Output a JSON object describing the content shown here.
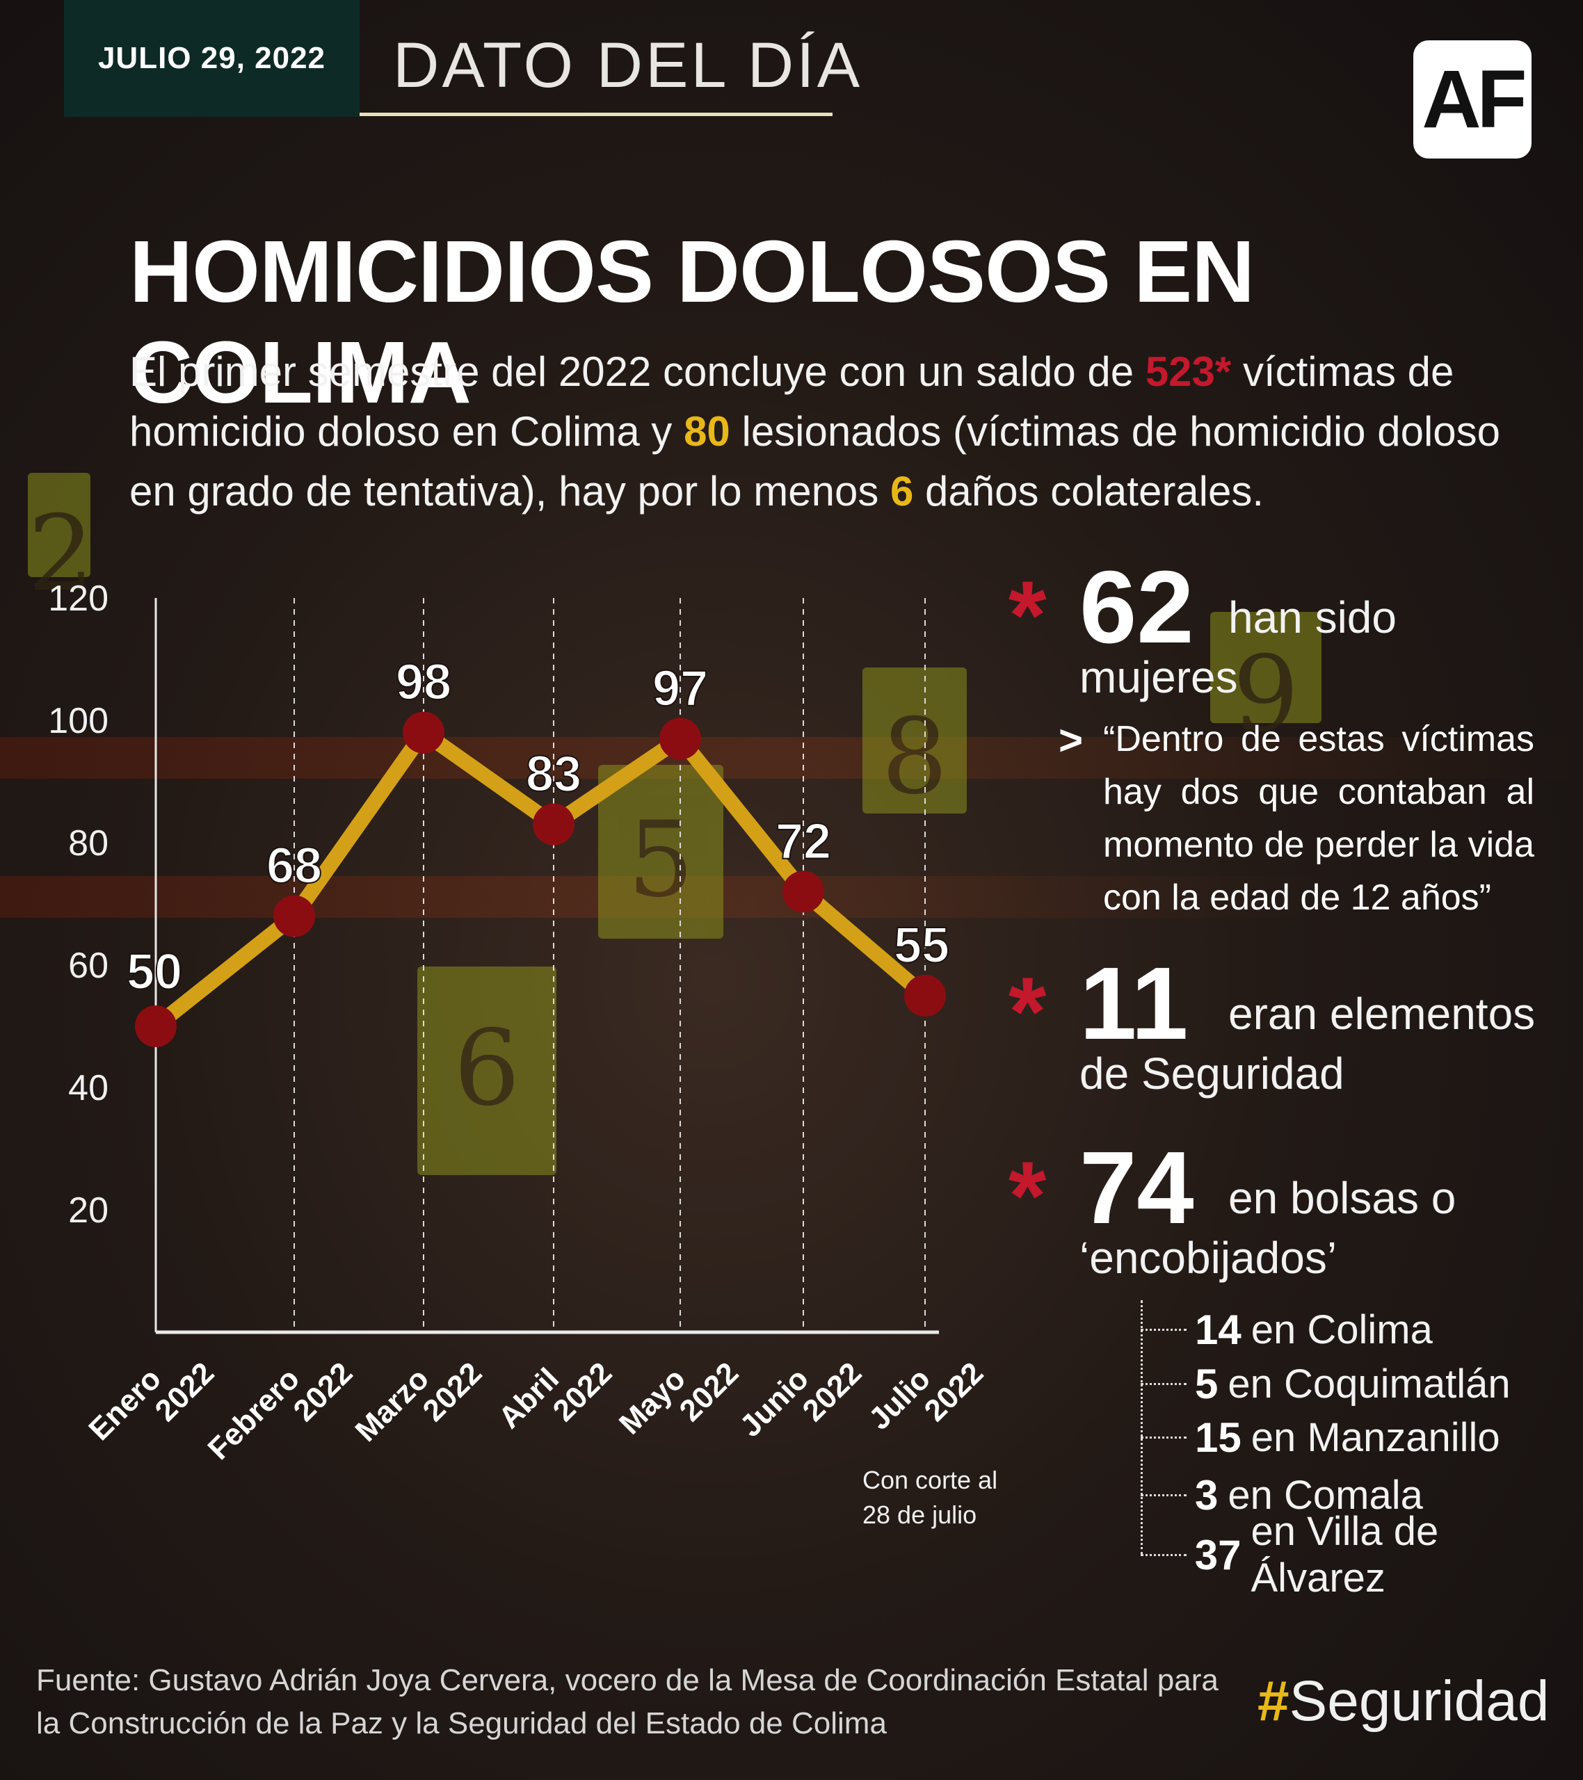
{
  "header": {
    "date": "JULIO 29, 2022",
    "section": "DATO DEL DÍA",
    "logo": "AF"
  },
  "title": "HOMICIDIOS DOLOSOS EN COLIMA",
  "intro": {
    "p1": "El primer semestre del 2022 concluye con un saldo de ",
    "victims": "523*",
    "p2": " víctimas de homicidio doloso en Colima y ",
    "injured": "80",
    "p3": " lesionados (víctimas de homicidio doloso en grado de tentativa), hay por lo menos ",
    "collateral": "6",
    "p4": " daños colaterales."
  },
  "colors": {
    "accent_red": "#c4182c",
    "accent_yellow": "#e8b818",
    "line": "#d4a017",
    "point": "#8b0d12",
    "header_bg": "#0e2a26"
  },
  "chart_data": {
    "type": "line",
    "categories": [
      "Enero 2022",
      "Febrero 2022",
      "Marzo 2022",
      "Abril 2022",
      "Mayo 2022",
      "Junio 2022",
      "Julio 2022"
    ],
    "values": [
      50,
      68,
      98,
      83,
      97,
      72,
      55
    ],
    "ylim": [
      0,
      120
    ],
    "yticks": [
      20,
      40,
      60,
      80,
      100,
      120
    ],
    "note": "Con corte al 28 de julio",
    "xlabel": "",
    "ylabel": ""
  },
  "stats": {
    "asterisk": "*",
    "women_num": "62",
    "women_text_a": "han sido",
    "women_text_b": "mujeres",
    "quote_marker": ">",
    "quote": "“Dentro de estas víctimas hay dos que contaban al momento de perder la vida con la edad de 12 años”",
    "security_num": "11",
    "security_text_a": "eran elementos",
    "security_text_b": "de Seguridad",
    "bags_num": "74",
    "bags_text_a": "en bolsas o",
    "bags_text_b": "‘encobijados’",
    "breakdown": [
      {
        "num": "14",
        "place": "en Colima"
      },
      {
        "num": "5",
        "place": "en Coquimatlán"
      },
      {
        "num": "15",
        "place": "en Manzanillo"
      },
      {
        "num": "3",
        "place": "en Comala"
      },
      {
        "num": "37",
        "place": "en Villa de Álvarez"
      }
    ]
  },
  "footer": {
    "source": "Fuente: Gustavo Adrián Joya Cervera, vocero de la Mesa de Coordinación Estatal para la Construcción de la Paz y la Seguridad del Estado de Colima",
    "hashtag_symbol": "#",
    "hashtag_text": "Seguridad"
  }
}
